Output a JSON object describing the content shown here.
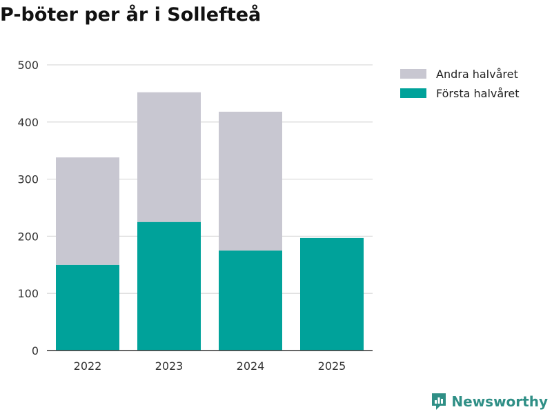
{
  "title": "P-böter per år i Sollefteå",
  "brand": {
    "name": "Newsworthy",
    "icon": "newsworthy-logo-icon",
    "color": "#2f8f86"
  },
  "chart_data": {
    "type": "bar",
    "stacked": true,
    "title": "P-böter per år i Sollefteå",
    "xlabel": "",
    "ylabel": "",
    "categories": [
      "2022",
      "2023",
      "2024",
      "2025"
    ],
    "series": [
      {
        "name": "Första halvåret",
        "color": "#00a29a",
        "values": [
          150,
          225,
          175,
          197
        ]
      },
      {
        "name": "Andra halvåret",
        "color": "#c8c7d1",
        "values": [
          188,
          227,
          243,
          0
        ]
      }
    ],
    "ylim": [
      0,
      500
    ],
    "yticks": [
      0,
      100,
      200,
      300,
      400,
      500
    ],
    "grid": true,
    "legend_position": "top-right",
    "legend_order": [
      "Andra halvåret",
      "Första halvåret"
    ]
  }
}
